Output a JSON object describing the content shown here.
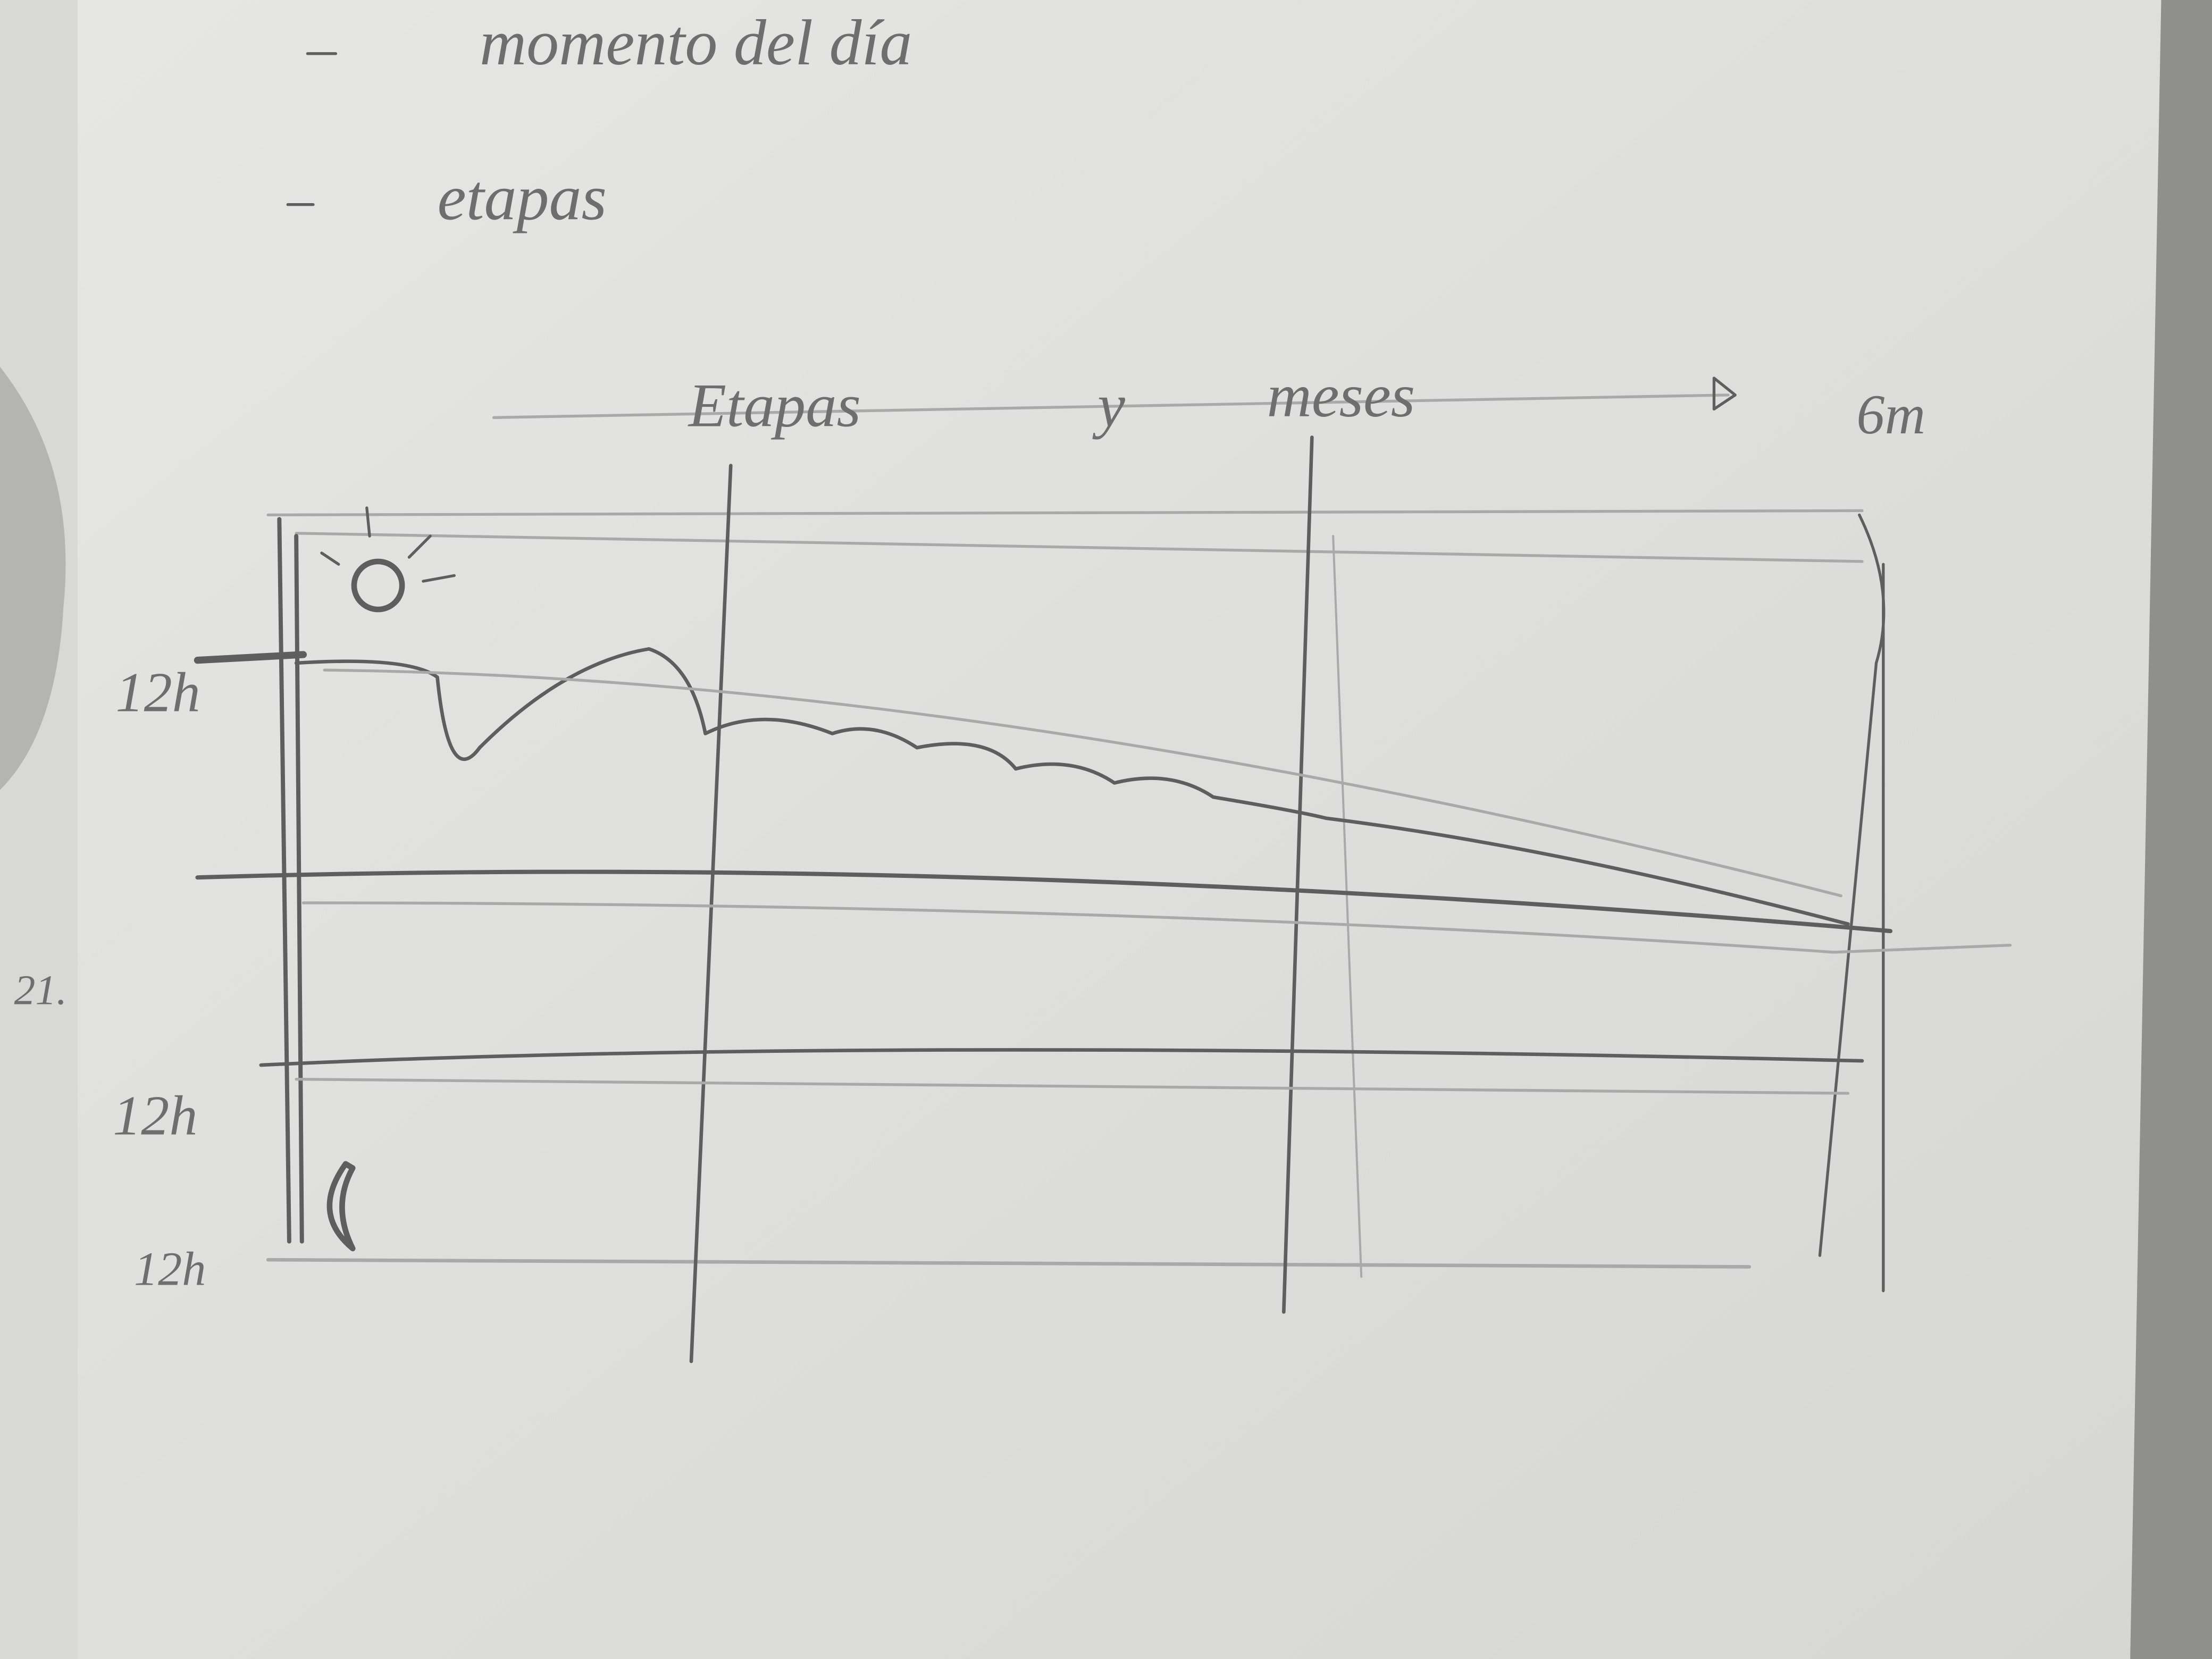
{
  "notes": [
    "momento del día",
    "etapas"
  ],
  "sketch": {
    "x_axis_words": [
      "Etapas",
      "y",
      "meses"
    ],
    "x_axis_end": "6m",
    "y_labels": [
      "12h",
      "12h",
      "12h"
    ],
    "margin_mark": "21."
  }
}
